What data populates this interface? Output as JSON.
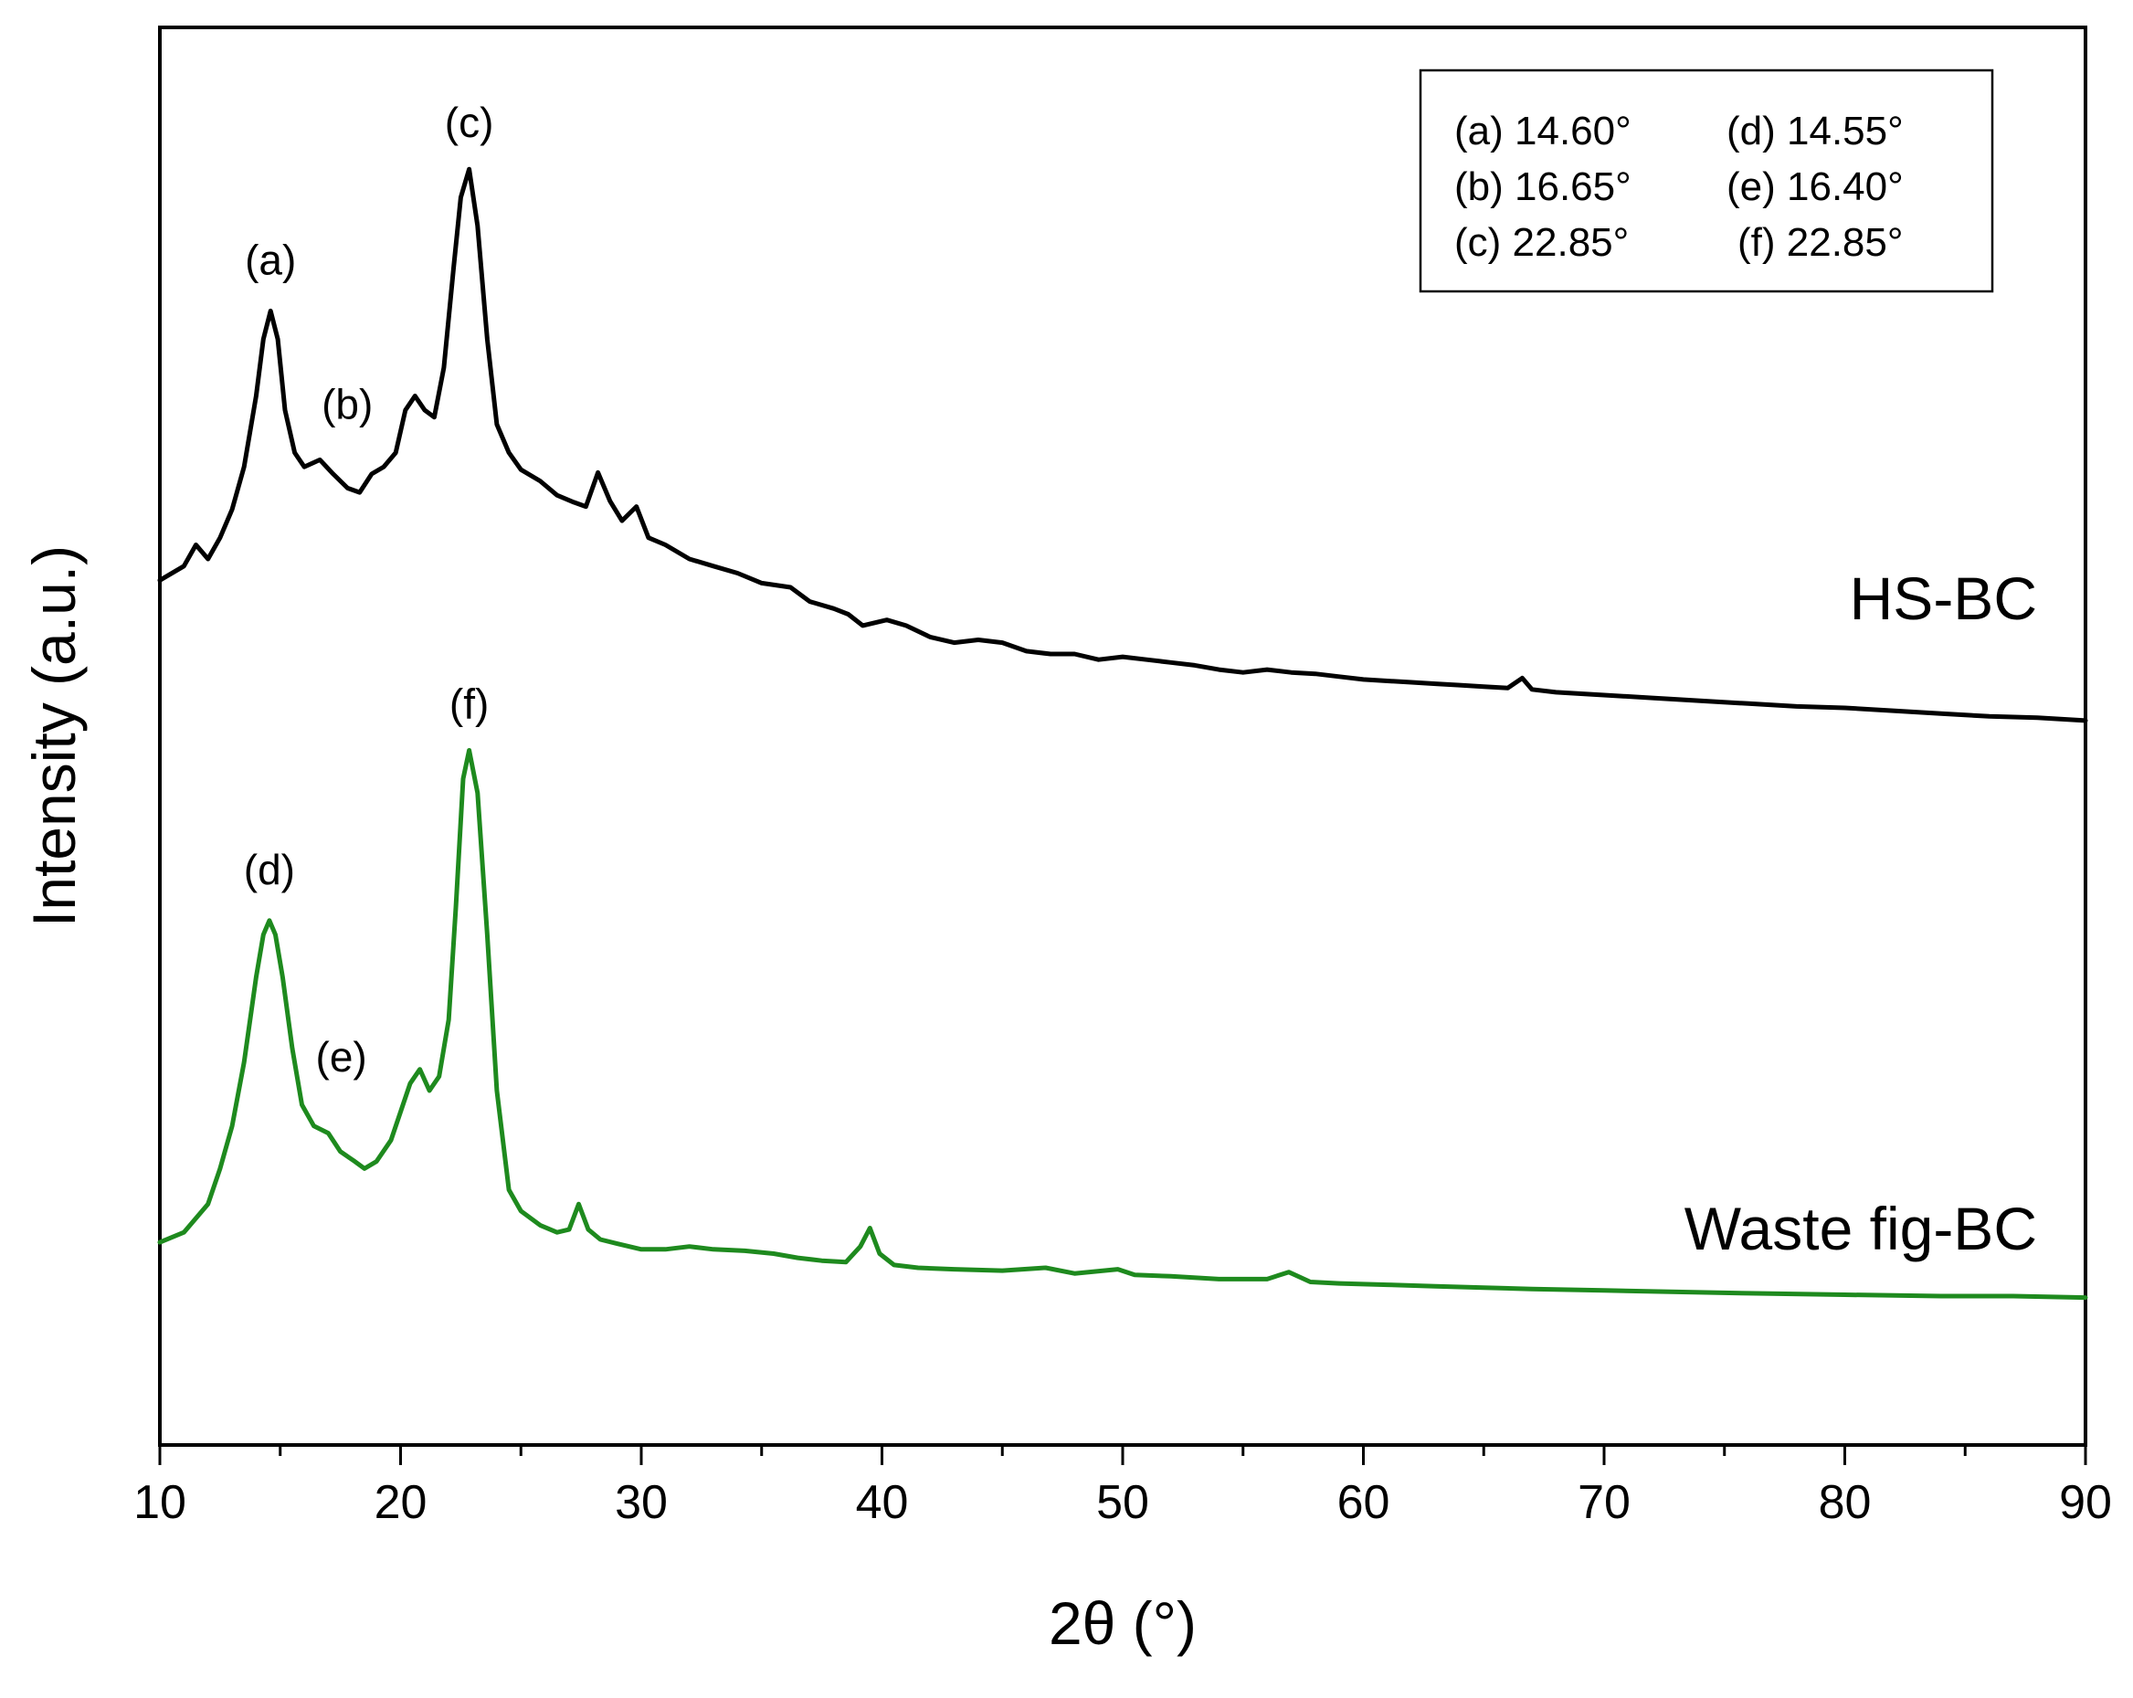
{
  "chart_data": {
    "type": "line",
    "title": "",
    "xlabel": "2θ (°)",
    "ylabel": "Intensity (a.u.)",
    "xlim": [
      10,
      90
    ],
    "ylim": [
      0,
      1
    ],
    "y_ticks_shown": false,
    "x_ticks": [
      "10",
      "20",
      "30",
      "40",
      "50",
      "60",
      "70",
      "80",
      "90"
    ],
    "grid": false,
    "series": [
      {
        "name": "HS-BC",
        "color": "#000000",
        "x": [
          10,
          11,
          11.5,
          12,
          12.5,
          13,
          13.5,
          14,
          14.3,
          14.6,
          14.9,
          15.2,
          15.6,
          16,
          16.65,
          17.2,
          17.8,
          18.3,
          18.8,
          19.3,
          19.8,
          20.2,
          20.6,
          21,
          21.4,
          21.8,
          22.2,
          22.5,
          22.85,
          23.2,
          23.6,
          24,
          24.5,
          25,
          25.8,
          26.5,
          27.2,
          27.7,
          28.2,
          28.7,
          29.2,
          29.8,
          30.3,
          31,
          32,
          33,
          34,
          35,
          36.2,
          37,
          38,
          38.6,
          39.2,
          40.2,
          41,
          42,
          43,
          44,
          45,
          46,
          47,
          48,
          49,
          50,
          51,
          52,
          53,
          54,
          55,
          56,
          57,
          58,
          59,
          60,
          61,
          62,
          63,
          64,
          65,
          66,
          66.6,
          67,
          68,
          70,
          72,
          74,
          76,
          78,
          80,
          82,
          84,
          86,
          88,
          90
        ],
        "y": [
          0.61,
          0.62,
          0.635,
          0.625,
          0.64,
          0.66,
          0.69,
          0.74,
          0.78,
          0.8,
          0.78,
          0.73,
          0.7,
          0.69,
          0.695,
          0.685,
          0.675,
          0.672,
          0.685,
          0.69,
          0.7,
          0.73,
          0.74,
          0.73,
          0.725,
          0.76,
          0.83,
          0.88,
          0.9,
          0.86,
          0.78,
          0.72,
          0.7,
          0.688,
          0.68,
          0.67,
          0.665,
          0.662,
          0.686,
          0.666,
          0.652,
          0.662,
          0.64,
          0.635,
          0.625,
          0.62,
          0.615,
          0.608,
          0.605,
          0.595,
          0.59,
          0.586,
          0.578,
          0.582,
          0.578,
          0.57,
          0.566,
          0.568,
          0.566,
          0.56,
          0.558,
          0.558,
          0.554,
          0.556,
          0.554,
          0.552,
          0.55,
          0.547,
          0.545,
          0.547,
          0.545,
          0.544,
          0.542,
          0.54,
          0.539,
          0.538,
          0.537,
          0.536,
          0.535,
          0.534,
          0.541,
          0.533,
          0.531,
          0.529,
          0.527,
          0.525,
          0.523,
          0.521,
          0.52,
          0.518,
          0.516,
          0.514,
          0.513,
          0.511
        ]
      },
      {
        "name": "Waste fig-BC",
        "color": "#1e8a1e",
        "x": [
          10,
          11,
          12,
          12.5,
          13,
          13.5,
          14,
          14.3,
          14.55,
          14.8,
          15.1,
          15.5,
          15.9,
          16.4,
          17,
          17.5,
          18.1,
          18.5,
          19,
          19.6,
          20,
          20.4,
          20.8,
          21.2,
          21.6,
          22,
          22.3,
          22.6,
          22.85,
          23.2,
          23.6,
          24,
          24.5,
          25,
          25.8,
          26.5,
          27,
          27.4,
          27.8,
          28.3,
          29,
          30,
          31,
          32,
          33,
          34.3,
          35.5,
          36.5,
          37.5,
          38.5,
          39.1,
          39.5,
          39.9,
          40.5,
          41.5,
          43,
          45,
          46.8,
          48,
          49.8,
          50.5,
          52,
          54,
          56,
          56.9,
          57.8,
          59,
          61,
          63,
          65,
          67,
          70,
          73,
          76,
          80,
          84,
          87,
          90
        ],
        "y": [
          0.143,
          0.15,
          0.17,
          0.195,
          0.225,
          0.27,
          0.33,
          0.36,
          0.37,
          0.36,
          0.33,
          0.28,
          0.24,
          0.225,
          0.22,
          0.207,
          0.2,
          0.195,
          0.2,
          0.215,
          0.235,
          0.255,
          0.265,
          0.25,
          0.26,
          0.3,
          0.38,
          0.47,
          0.49,
          0.46,
          0.36,
          0.25,
          0.18,
          0.165,
          0.155,
          0.15,
          0.152,
          0.17,
          0.152,
          0.145,
          0.142,
          0.138,
          0.138,
          0.14,
          0.138,
          0.137,
          0.135,
          0.132,
          0.13,
          0.129,
          0.14,
          0.153,
          0.135,
          0.127,
          0.125,
          0.124,
          0.123,
          0.125,
          0.121,
          0.124,
          0.12,
          0.119,
          0.117,
          0.117,
          0.122,
          0.115,
          0.114,
          0.113,
          0.112,
          0.111,
          0.11,
          0.109,
          0.108,
          0.107,
          0.106,
          0.105,
          0.105,
          0.104
        ]
      }
    ],
    "annotations": [
      {
        "label": "(a)",
        "x": 14.6,
        "series": "HS-BC"
      },
      {
        "label": "(b)",
        "x": 16.65,
        "series": "HS-BC"
      },
      {
        "label": "(c)",
        "x": 22.85,
        "series": "HS-BC"
      },
      {
        "label": "(d)",
        "x": 14.55,
        "series": "Waste fig-BC"
      },
      {
        "label": "(e)",
        "x": 16.4,
        "series": "Waste fig-BC"
      },
      {
        "label": "(f)",
        "x": 22.85,
        "series": "Waste fig-BC"
      }
    ],
    "legend": {
      "placement": "top-right",
      "entries": [
        "(a) 14.60°",
        "(d) 14.55°",
        "(b) 16.65°",
        "(e) 16.40°",
        "(c) 22.85°",
        "(f) 22.85°"
      ]
    }
  }
}
